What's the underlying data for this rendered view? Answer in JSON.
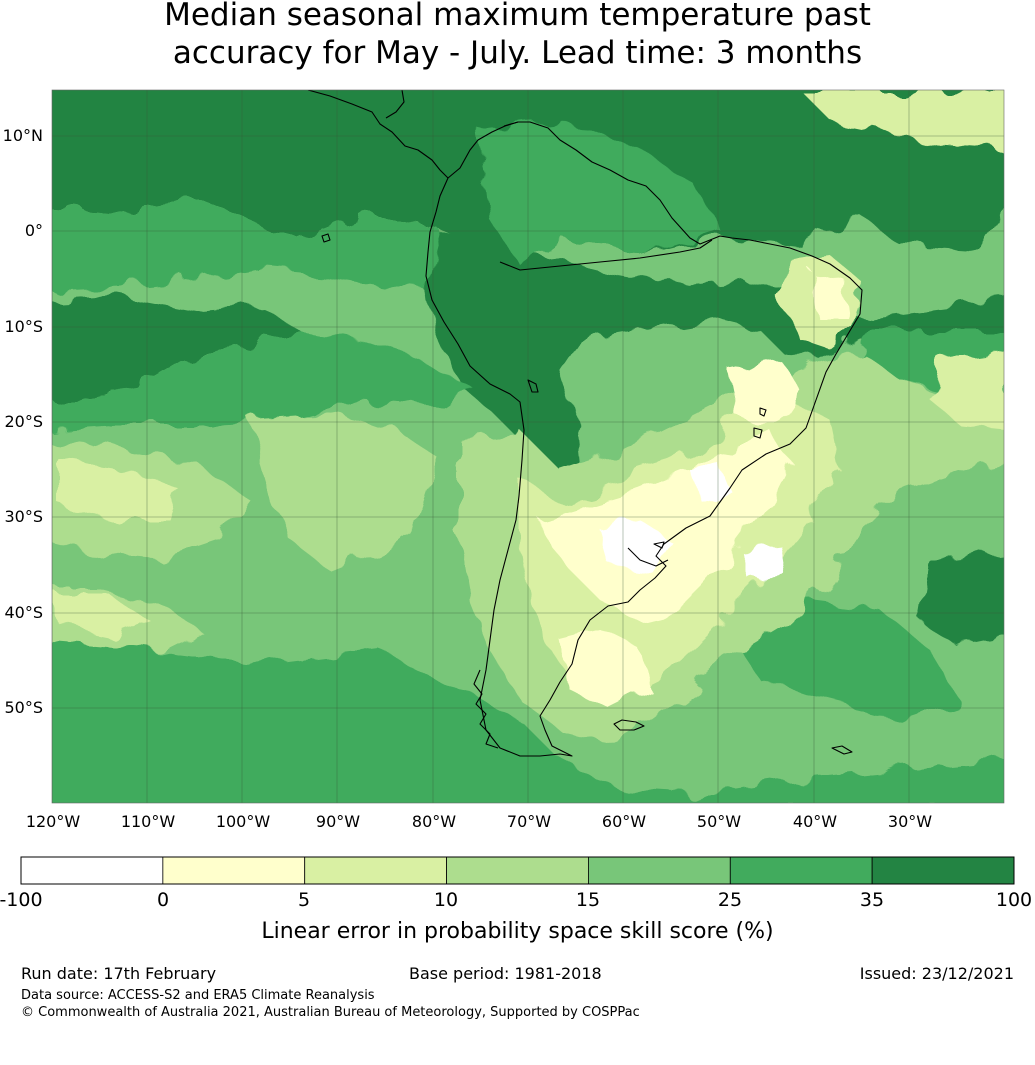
{
  "title": {
    "line1": "Median seasonal maximum temperature past",
    "line2": "accuracy for May - July. Lead time: 3 months"
  },
  "map": {
    "lat_labels": [
      "10°N",
      "0°",
      "10°S",
      "20°S",
      "30°S",
      "40°S",
      "50°S"
    ],
    "lon_labels": [
      "120°W",
      "110°W",
      "100°W",
      "90°W",
      "80°W",
      "70°W",
      "60°W",
      "50°W",
      "40°W",
      "30°W"
    ],
    "extent": {
      "lon": [
        -122,
        -22
      ],
      "lat": [
        -60,
        15
      ]
    },
    "region": "South America and surrounding oceans"
  },
  "colorbar": {
    "ticks": [
      "-100",
      "0",
      "5",
      "10",
      "15",
      "25",
      "35",
      "100"
    ],
    "colors": [
      "#ffffff",
      "#ffffcc",
      "#d9f0a3",
      "#addd8e",
      "#78c679",
      "#41ab5d",
      "#238443"
    ],
    "label": "Linear error in probability space skill score (%)"
  },
  "footer": {
    "run_date": "Run date: 17th February",
    "base_period": "Base period: 1981-2018",
    "issued": "Issued: 23/12/2021",
    "data_source": "Data source: ACCESS-S2 and ERA5 Climate Reanalysis",
    "copyright": "© Commonwealth of Australia 2021, Australian Bureau of Meteorology, Supported by COSPPac"
  }
}
